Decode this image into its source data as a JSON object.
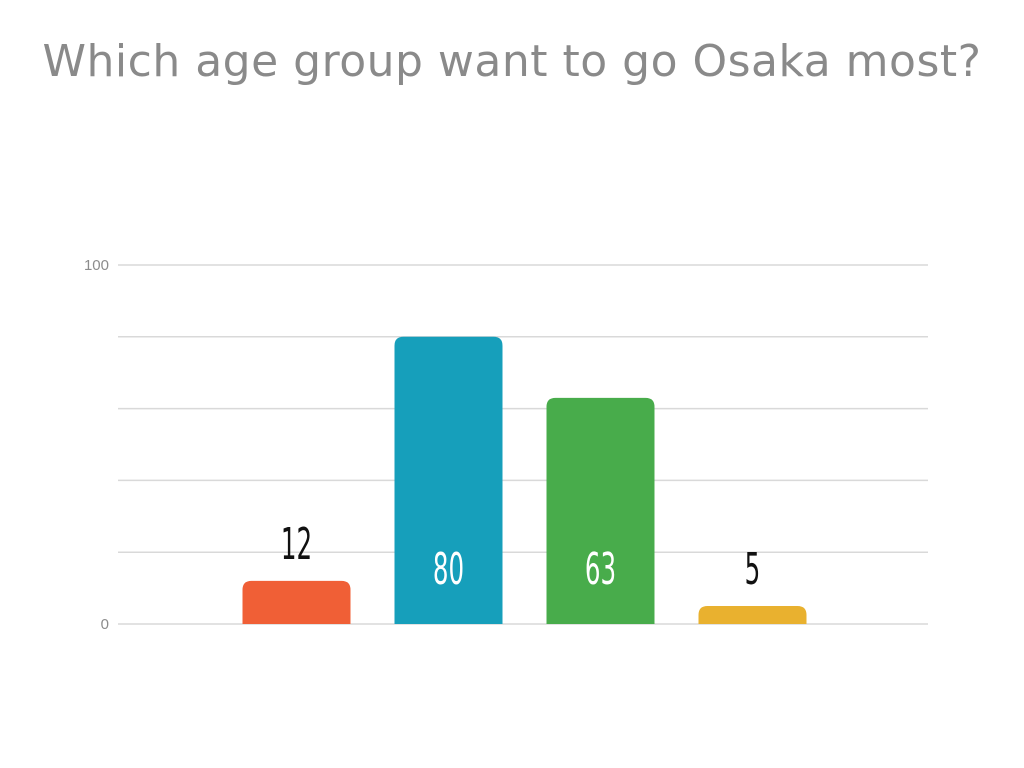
{
  "title": "Which age group want to go Osaka most?",
  "chart_data": {
    "type": "bar",
    "title": "Which age group want to go Osaka most?",
    "categories": [
      "",
      "",
      "",
      ""
    ],
    "values": [
      12,
      80,
      63,
      5
    ],
    "colors": [
      "#f05f36",
      "#169fbb",
      "#48ac4b",
      "#e9b12f"
    ],
    "ylim": [
      0,
      100
    ],
    "yticks_labeled": [
      0,
      100
    ],
    "gridlines": [
      0,
      20,
      40,
      60,
      80,
      100
    ],
    "grid": true,
    "legend": "none"
  }
}
